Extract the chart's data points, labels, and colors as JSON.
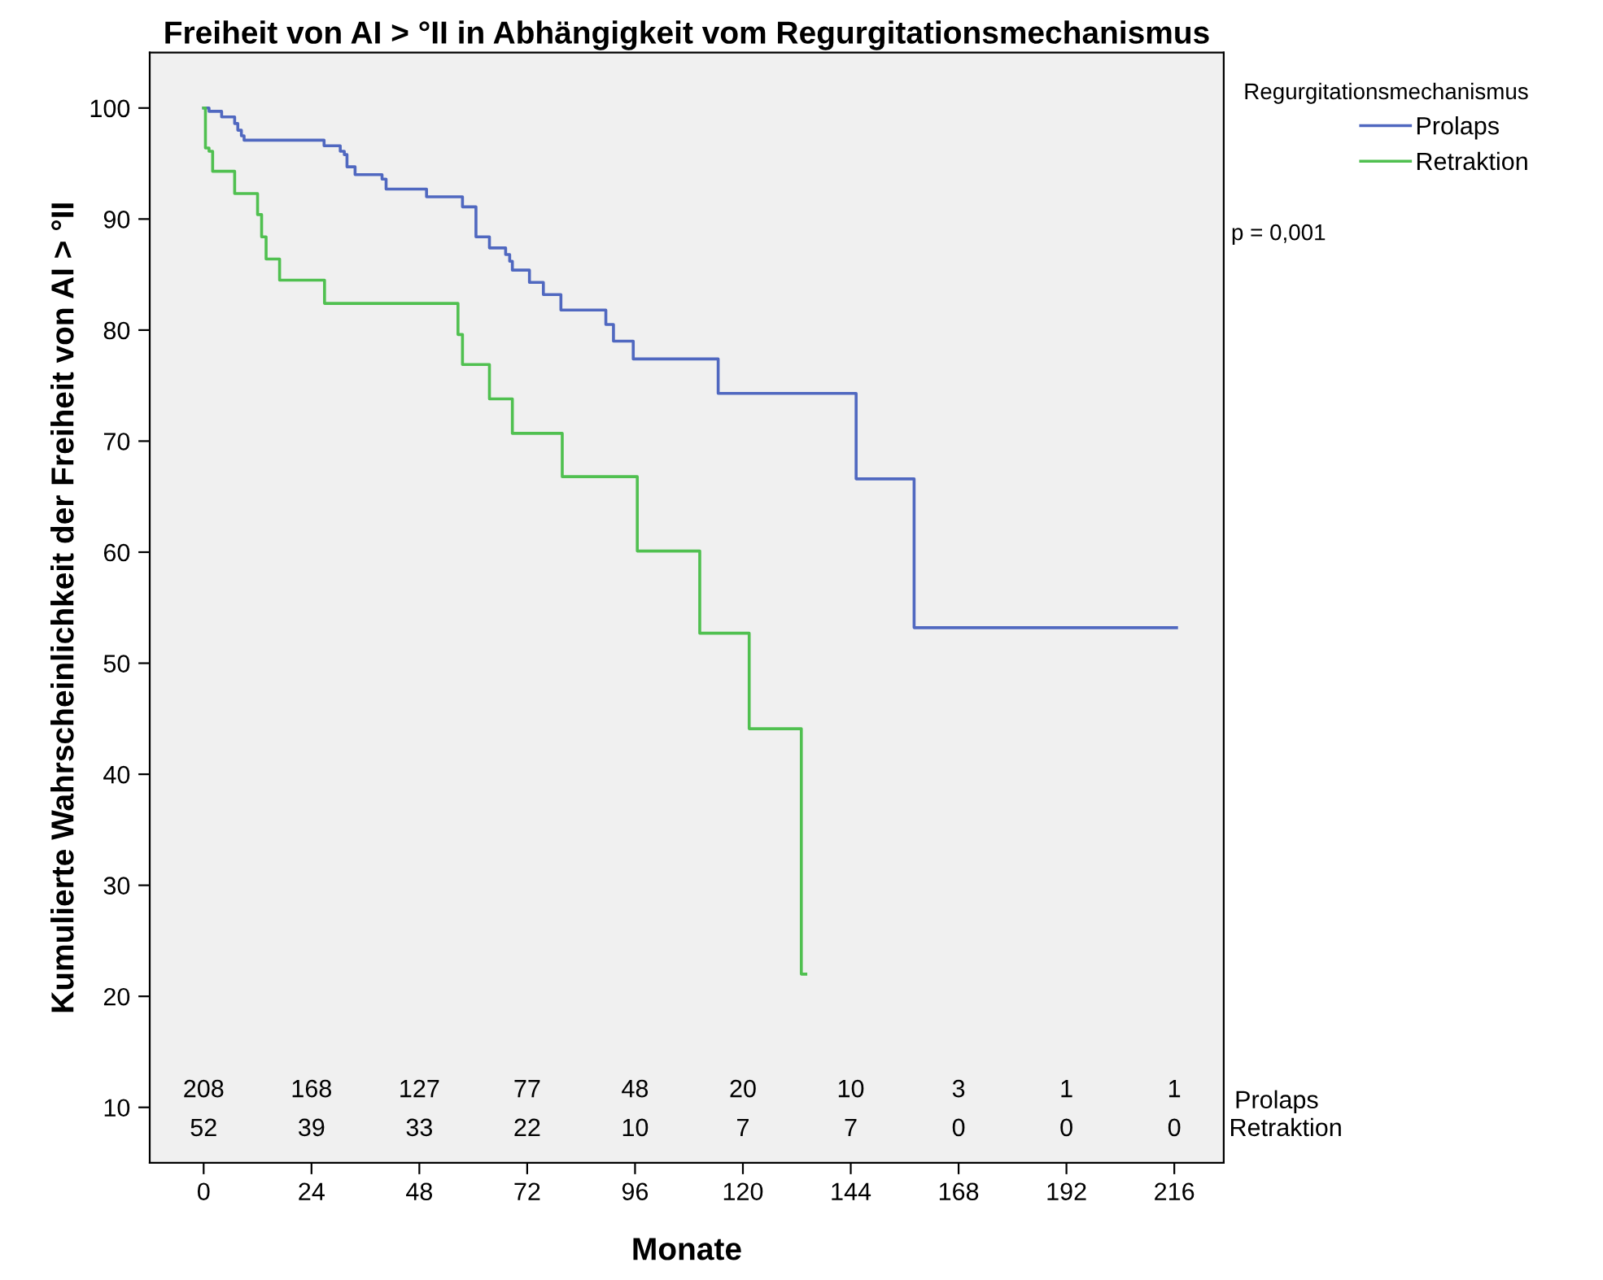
{
  "chart_data": {
    "type": "step",
    "title": "Freiheit von AI > °II in Abhängigkeit vom Regurgitationsmechanismus",
    "xlabel": "Monate",
    "ylabel": "Kumulierte Wahrscheinlichkeit der Freiheit von AI > °II",
    "legend_title": "Regurgitationsmechanismus",
    "legend": "top right",
    "grid": false,
    "marker": "none",
    "line_style": "solid",
    "xlim": [
      -12,
      227
    ],
    "ylim": [
      5,
      105
    ],
    "xticks": [
      0,
      24,
      48,
      72,
      96,
      120,
      144,
      168,
      192,
      216
    ],
    "yticks": [
      10,
      20,
      30,
      40,
      50,
      60,
      70,
      80,
      90,
      100
    ],
    "series": [
      {
        "name": "Prolaps",
        "color": "#5068c0",
        "x": [
          0,
          1.2,
          4,
          6.9,
          7.6,
          8.4,
          9.0,
          26.8,
          30.4,
          31.3,
          31.9,
          33.7,
          39.7,
          40.6,
          49.6,
          57.6,
          60.6,
          63.6,
          67.2,
          68.1,
          68.7,
          72.5,
          75.6,
          79.5,
          89.5,
          91.2,
          95.6,
          114.5,
          145.2,
          158.1,
          216.5
        ],
        "values": [
          100,
          99.7,
          99.2,
          98.6,
          98.0,
          97.5,
          97.1,
          96.6,
          96.1,
          95.8,
          94.7,
          94.0,
          93.6,
          92.7,
          92.0,
          91.1,
          88.4,
          87.4,
          86.8,
          86.2,
          85.4,
          84.3,
          83.2,
          81.8,
          80.5,
          79.0,
          77.4,
          74.3,
          66.6,
          53.2,
          53.2
        ]
      },
      {
        "name": "Retraktion",
        "color": "#50c050",
        "x": [
          0,
          0.4,
          1.2,
          2.0,
          6.9,
          12.0,
          12.9,
          13.9,
          16.9,
          26.9,
          56.6,
          57.6,
          63.6,
          68.7,
          79.8,
          96.5,
          110.4,
          121.4,
          133.0,
          134.0
        ],
        "values": [
          100,
          96.4,
          96.1,
          94.3,
          92.3,
          90.4,
          88.4,
          86.4,
          84.5,
          82.4,
          79.6,
          76.9,
          73.8,
          70.7,
          66.8,
          60.1,
          52.7,
          44.1,
          22.0,
          22.0
        ]
      }
    ],
    "annotations": [
      "208",
      "168",
      "127",
      "77",
      "48",
      "20",
      "10",
      "3",
      "1",
      "1",
      "52",
      "39",
      "33",
      "22",
      "10",
      "7",
      "7",
      "0",
      "0",
      "0",
      "Prolaps",
      "Retraktion",
      "p = 0,001"
    ]
  }
}
